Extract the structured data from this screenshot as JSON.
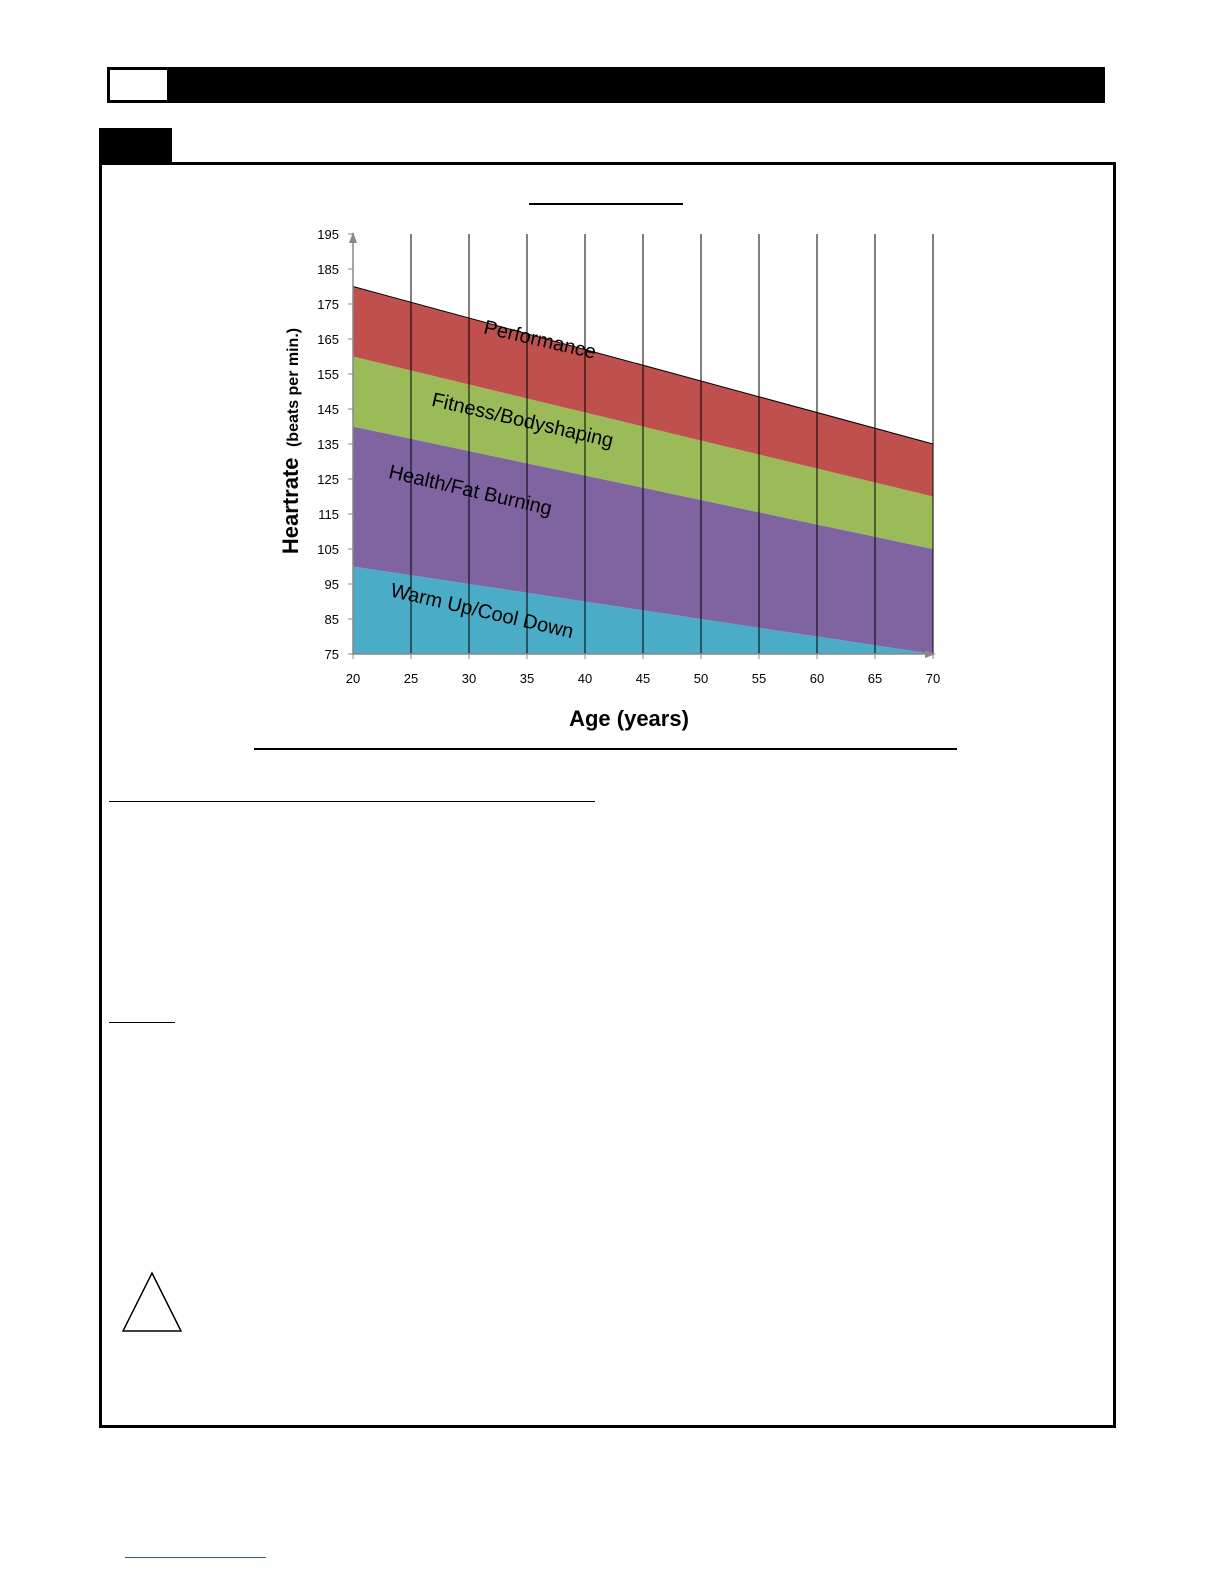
{
  "chart_data": {
    "type": "area",
    "xlabel": "Age (years)",
    "ylabel": "Heartrate",
    "ylabel_unit": "(beats per min.)",
    "x_ticks": [
      20,
      25,
      30,
      35,
      40,
      45,
      50,
      55,
      60,
      65,
      70
    ],
    "y_ticks": [
      75,
      85,
      95,
      105,
      115,
      125,
      135,
      145,
      155,
      165,
      175,
      185,
      195
    ],
    "xlim": [
      20,
      70
    ],
    "ylim": [
      75,
      195
    ],
    "grid": "vertical",
    "legend": "none",
    "zones": [
      {
        "name": "Warm Up/Cool Down",
        "color": "#4aacc6",
        "lower": [
          75,
          75
        ],
        "upper": [
          100,
          75
        ]
      },
      {
        "name": "Health/Fat Burning",
        "color": "#8064a2",
        "lower": [
          100,
          75
        ],
        "upper": [
          140,
          105
        ]
      },
      {
        "name": "Fitness/Bodyshaping",
        "color": "#9bbb59",
        "lower": [
          140,
          105
        ],
        "upper": [
          160,
          120
        ]
      },
      {
        "name": "Performance",
        "color": "#c0504d",
        "lower": [
          160,
          120
        ],
        "upper": [
          180,
          135
        ]
      }
    ],
    "labels": [
      {
        "text": "Performance",
        "x": 36,
        "y": 163
      },
      {
        "text": "Fitness/Bodyshaping",
        "x": 34.5,
        "y": 140
      },
      {
        "text": "Health/Fat Burning",
        "x": 30,
        "y": 120
      },
      {
        "text": "Warm Up/Cool Down",
        "x": 31,
        "y": 85.5
      }
    ]
  },
  "icons": {
    "warning": "warning-triangle-icon"
  }
}
